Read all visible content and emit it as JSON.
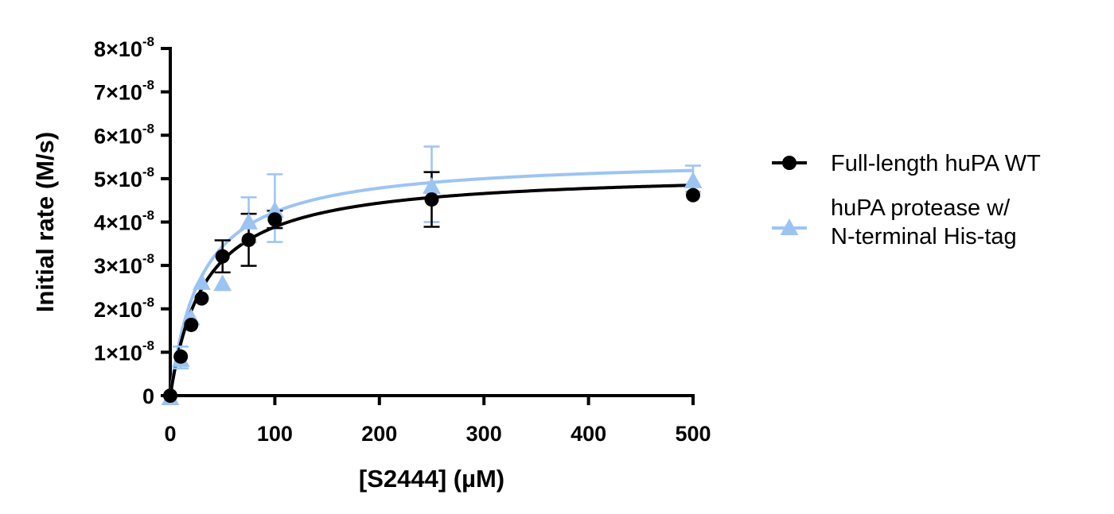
{
  "chart_data": {
    "type": "scatter",
    "title": "",
    "xlabel": "[S2444] (µM)",
    "ylabel": "Initial rate (M/s)",
    "xlim": [
      0,
      500
    ],
    "ylim": [
      0,
      8e-08
    ],
    "x_ticks": [
      0,
      100,
      200,
      300,
      400,
      500
    ],
    "x_tick_labels": [
      "0",
      "100",
      "200",
      "300",
      "400",
      "500"
    ],
    "y_ticks": [
      0,
      1e-08,
      2e-08,
      3e-08,
      4e-08,
      5e-08,
      6e-08,
      7e-08,
      8e-08
    ],
    "y_tick_labels": [
      "0",
      "1×10",
      "2×10",
      "3×10",
      "4×10",
      "5×10",
      "6×10",
      "7×10",
      "8×10"
    ],
    "y_tick_exponent": "-8",
    "grid": false,
    "legend_position": "right",
    "series": [
      {
        "name": "Full-length huPA WT",
        "marker": "circle",
        "color": "#000000",
        "x": [
          0,
          10,
          20,
          30,
          50,
          75,
          100,
          250,
          500
        ],
        "y": [
          0,
          9e-09,
          1.63e-08,
          2.24e-08,
          3.21e-08,
          3.59e-08,
          4.06e-08,
          4.52e-08,
          4.62e-08
        ],
        "error": [
          0,
          0,
          0,
          0,
          3.7e-09,
          6e-09,
          2e-09,
          6.3e-09,
          0
        ],
        "fit": {
          "model": "michaelis-menten",
          "vmax": 5.17e-08,
          "km": 33
        }
      },
      {
        "name": "huPA protease w/ N-terminal His-tag",
        "legend_lines": [
          "huPA protease w/",
          "N-terminal His-tag"
        ],
        "marker": "triangle",
        "color": "#9cc4f3",
        "x": [
          0,
          10,
          20,
          30,
          50,
          75,
          100,
          250,
          500
        ],
        "y": [
          0,
          8.8e-09,
          1.84e-08,
          2.66e-08,
          2.63e-08,
          4.05e-08,
          4.32e-08,
          4.87e-08,
          5e-08
        ],
        "error": [
          0,
          2.5e-09,
          0,
          0,
          0,
          5.2e-09,
          7.8e-09,
          8.7e-09,
          3e-09
        ],
        "fit": {
          "model": "michaelis-menten",
          "vmax": 5.5e-08,
          "km": 30
        }
      }
    ]
  }
}
